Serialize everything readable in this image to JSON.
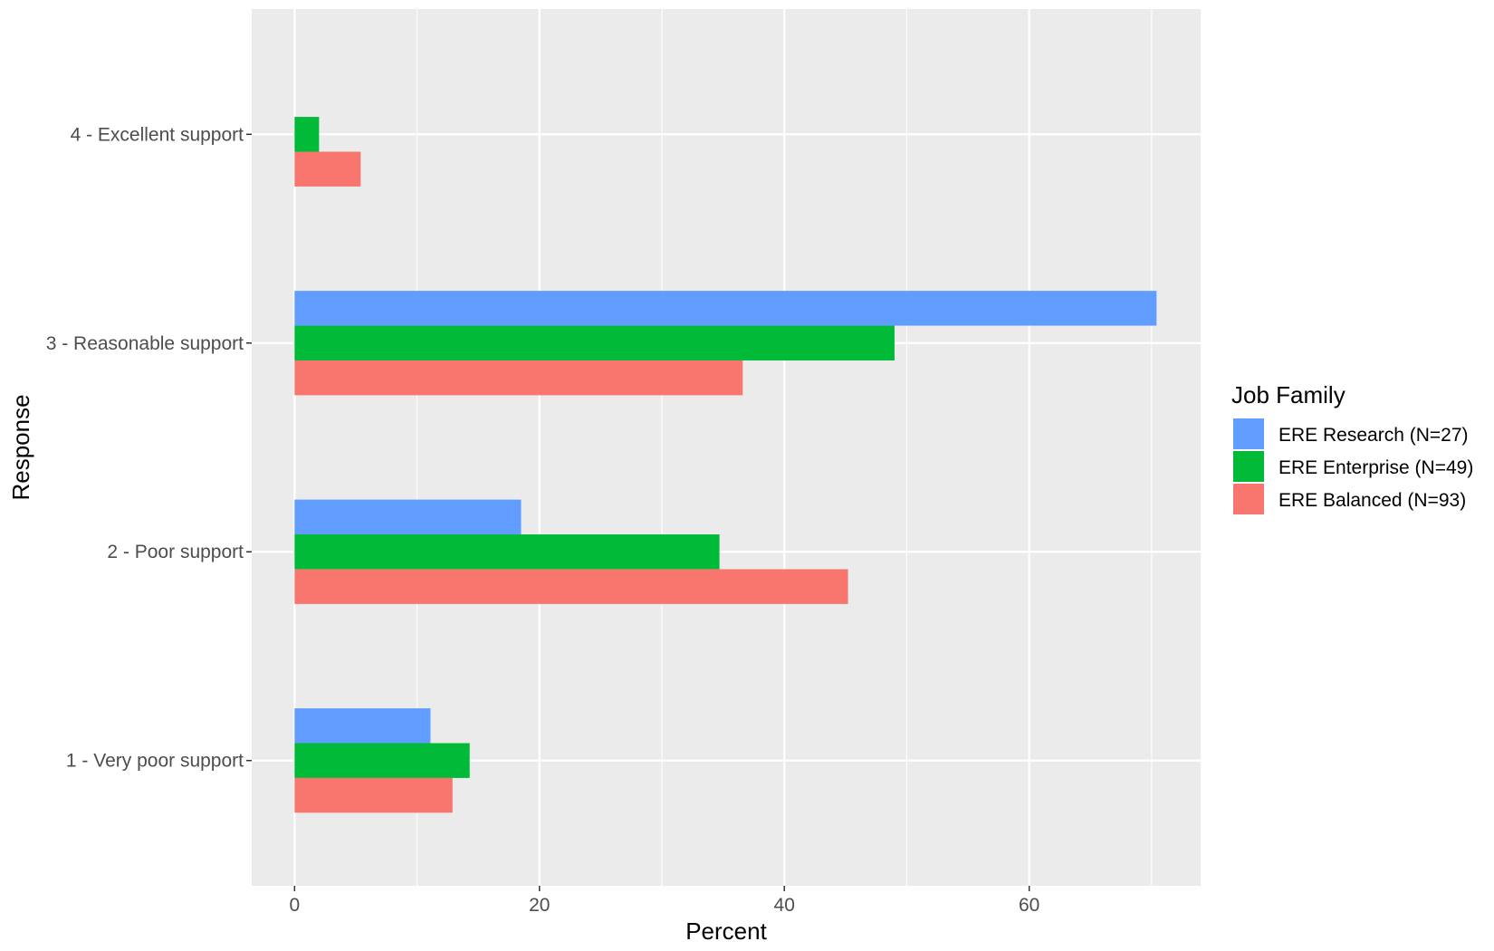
{
  "chart_data": {
    "type": "bar",
    "orientation": "horizontal",
    "title": "",
    "xlabel": "Percent",
    "ylabel": "Response",
    "xlim": [
      -3.5,
      74.0
    ],
    "x_ticks": [
      0,
      20,
      40,
      60
    ],
    "categories": [
      "1 - Very poor support",
      "2 - Poor support",
      "3 - Reasonable support",
      "4 - Excellent support"
    ],
    "series": [
      {
        "name": "ERE Research (N=27)",
        "color": "#619CFF",
        "values": [
          11.1,
          18.5,
          70.4,
          0
        ]
      },
      {
        "name": "ERE Enterprise (N=49)",
        "color": "#00BA38",
        "values": [
          14.3,
          34.7,
          49.0,
          2.0
        ]
      },
      {
        "name": "ERE Balanced (N=93)",
        "color": "#F8766D",
        "values": [
          12.9,
          45.2,
          36.6,
          5.4
        ]
      }
    ],
    "legend": {
      "title": "Job Family",
      "placement": "right"
    },
    "grid": true,
    "panel_background": "#EBEBEB",
    "gridline_color": "#FFFFFF"
  }
}
